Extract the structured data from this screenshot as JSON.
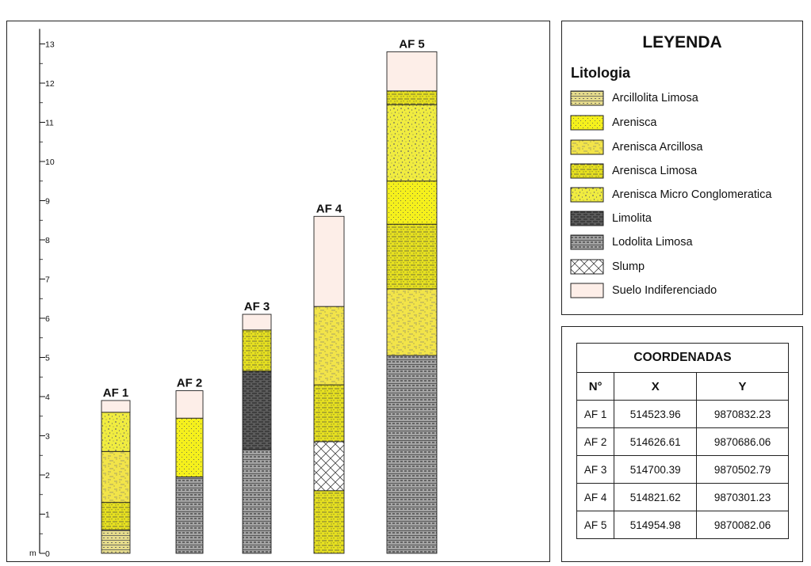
{
  "scale": {
    "unit_label": "m",
    "ticks": [
      "0",
      "1",
      "2",
      "3",
      "4",
      "5",
      "6",
      "7",
      "8",
      "9",
      "10",
      "11",
      "12",
      "13"
    ]
  },
  "columns": [
    {
      "name": "AF 1",
      "layers": [
        {
          "from": 0,
          "to": 0.6,
          "lith": "arcillolita_limosa"
        },
        {
          "from": 0.6,
          "to": 1.3,
          "lith": "arenisca_limosa"
        },
        {
          "from": 1.3,
          "to": 2.6,
          "lith": "arenisca_arcillosa"
        },
        {
          "from": 2.6,
          "to": 3.6,
          "lith": "arenisca_micro_conglomeratica"
        },
        {
          "from": 3.6,
          "to": 3.9,
          "lith": "suelo_indiferenciado"
        }
      ]
    },
    {
      "name": "AF 2",
      "layers": [
        {
          "from": 0,
          "to": 1.95,
          "lith": "lodolita_limosa"
        },
        {
          "from": 1.95,
          "to": 3.45,
          "lith": "arenisca"
        },
        {
          "from": 3.45,
          "to": 4.15,
          "lith": "suelo_indiferenciado"
        }
      ]
    },
    {
      "name": "AF 3",
      "layers": [
        {
          "from": 0,
          "to": 2.65,
          "lith": "lodolita_limosa"
        },
        {
          "from": 2.65,
          "to": 4.65,
          "lith": "limolita"
        },
        {
          "from": 4.65,
          "to": 5.7,
          "lith": "arenisca_limosa"
        },
        {
          "from": 5.7,
          "to": 6.1,
          "lith": "suelo_indiferenciado"
        }
      ]
    },
    {
      "name": "AF 4",
      "layers": [
        {
          "from": 0,
          "to": 1.6,
          "lith": "arenisca_limosa"
        },
        {
          "from": 1.6,
          "to": 2.85,
          "lith": "slump"
        },
        {
          "from": 2.85,
          "to": 4.3,
          "lith": "arenisca_limosa"
        },
        {
          "from": 4.3,
          "to": 6.3,
          "lith": "arenisca_arcillosa"
        },
        {
          "from": 6.3,
          "to": 8.6,
          "lith": "suelo_indiferenciado"
        }
      ]
    },
    {
      "name": "AF 5",
      "layers": [
        {
          "from": 0,
          "to": 5.05,
          "lith": "lodolita_limosa"
        },
        {
          "from": 5.05,
          "to": 6.75,
          "lith": "arenisca_arcillosa"
        },
        {
          "from": 6.75,
          "to": 8.4,
          "lith": "arenisca_limosa"
        },
        {
          "from": 8.4,
          "to": 9.5,
          "lith": "arenisca"
        },
        {
          "from": 9.5,
          "to": 11.45,
          "lith": "arenisca_micro_conglomeratica"
        },
        {
          "from": 11.45,
          "to": 11.8,
          "lith": "arenisca_limosa"
        },
        {
          "from": 11.8,
          "to": 12.8,
          "lith": "suelo_indiferenciado"
        }
      ]
    }
  ],
  "legend": {
    "title": "LEYENDA",
    "subtitle": "Litologia",
    "items": [
      {
        "key": "arcillolita_limosa",
        "label": "Arcillolita Limosa"
      },
      {
        "key": "arenisca",
        "label": "Arenisca"
      },
      {
        "key": "arenisca_arcillosa",
        "label": "Arenisca Arcillosa"
      },
      {
        "key": "arenisca_limosa",
        "label": "Arenisca Limosa"
      },
      {
        "key": "arenisca_micro_conglomeratica",
        "label": "Arenisca Micro Conglomeratica"
      },
      {
        "key": "limolita",
        "label": "Limolita"
      },
      {
        "key": "lodolita_limosa",
        "label": "Lodolita Limosa"
      },
      {
        "key": "slump",
        "label": "Slump"
      },
      {
        "key": "suelo_indiferenciado",
        "label": "Suelo Indiferenciado"
      }
    ]
  },
  "coordinates": {
    "title": "COORDENADAS",
    "headers": [
      "N°",
      "X",
      "Y"
    ],
    "rows": [
      [
        "AF 1",
        "514523.96",
        "9870832.23"
      ],
      [
        "AF 2",
        "514626.61",
        "9870686.06"
      ],
      [
        "AF 3",
        "514700.39",
        "9870502.79"
      ],
      [
        "AF 4",
        "514821.62",
        "9870301.23"
      ],
      [
        "AF 5",
        "514954.98",
        "9870082.06"
      ]
    ]
  }
}
